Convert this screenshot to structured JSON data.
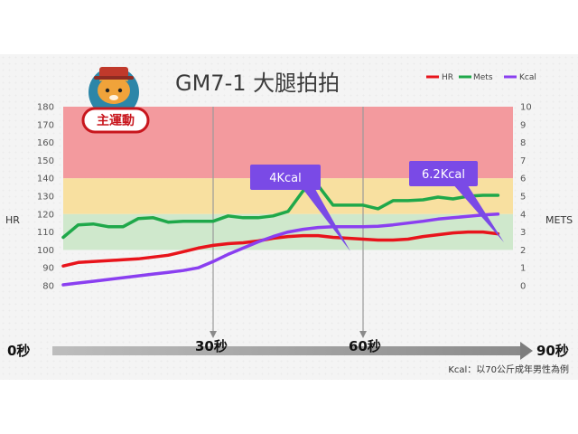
{
  "title": "GM7-1  大腿拍拍",
  "badge": "主運動",
  "colors": {
    "hr": "#e8141b",
    "mets": "#1fa84a",
    "kcal": "#8a3ff0",
    "zone_red": "#f39a9e",
    "zone_yellow": "#f8e0a0",
    "zone_green": "#cfe8cc",
    "callout": "#7a4ae6"
  },
  "note": "Kcal：以70公斤成年男性為例",
  "time_labels": {
    "start": "0秒",
    "t30": "30秒",
    "t60": "60秒",
    "end": "90秒"
  },
  "callouts": [
    {
      "name": "callout-4kcal",
      "text": "4Kcal"
    },
    {
      "name": "callout-6kcal",
      "text": "6.2Kcal"
    }
  ],
  "chart_data": {
    "type": "line",
    "x_range": [
      0,
      90
    ],
    "x_ticks": [
      30,
      60
    ],
    "left_axis": {
      "label": "HR",
      "ylim": [
        80,
        180
      ],
      "ticks": [
        80,
        90,
        100,
        110,
        120,
        130,
        140,
        150,
        160,
        170,
        180
      ]
    },
    "right_axis": {
      "label": "METS",
      "ylim": [
        0,
        10
      ],
      "ticks": [
        0,
        1,
        2,
        3,
        4,
        5,
        6,
        7,
        8,
        9,
        10
      ]
    },
    "zones": [
      {
        "axis": "left",
        "from": 140,
        "to": 180,
        "color": "red"
      },
      {
        "axis": "left",
        "from": 120,
        "to": 140,
        "color": "yellow"
      },
      {
        "axis": "left",
        "from": 100,
        "to": 120,
        "color": "green"
      }
    ],
    "legend": {
      "position": "top-right",
      "entries": [
        "HR",
        "Mets",
        "Kcal"
      ]
    },
    "x": [
      0,
      3,
      6,
      9,
      12,
      15,
      18,
      21,
      24,
      27,
      30,
      33,
      36,
      39,
      42,
      45,
      48,
      51,
      54,
      57,
      60,
      63,
      66,
      69,
      72,
      75,
      78,
      81,
      84,
      87
    ],
    "series": [
      {
        "name": "HR",
        "axis": "left",
        "values": [
          91,
          93,
          93.5,
          94,
          94.5,
          95,
          96,
          97,
          99,
          101,
          102.5,
          103.5,
          104,
          105,
          106.5,
          107.5,
          108,
          108,
          107,
          106.5,
          106,
          105.5,
          105.5,
          106,
          107.5,
          108.5,
          109.5,
          110,
          110,
          109
        ]
      },
      {
        "name": "Mets",
        "axis": "right",
        "values": [
          2.7,
          3.4,
          3.45,
          3.3,
          3.3,
          3.75,
          3.8,
          3.55,
          3.6,
          3.6,
          3.6,
          3.9,
          3.8,
          3.8,
          3.9,
          4.15,
          5.3,
          5.6,
          4.5,
          4.5,
          4.5,
          4.3,
          4.75,
          4.75,
          4.8,
          4.95,
          4.85,
          5.0,
          5.05,
          5.05
        ]
      },
      {
        "name": "Kcal",
        "axis": "right",
        "values": [
          0.05,
          0.15,
          0.25,
          0.35,
          0.45,
          0.55,
          0.65,
          0.75,
          0.85,
          1.0,
          1.35,
          1.75,
          2.1,
          2.45,
          2.75,
          3.0,
          3.15,
          3.25,
          3.3,
          3.3,
          3.3,
          3.32,
          3.4,
          3.5,
          3.6,
          3.72,
          3.8,
          3.88,
          3.95,
          4.0
        ]
      }
    ]
  }
}
